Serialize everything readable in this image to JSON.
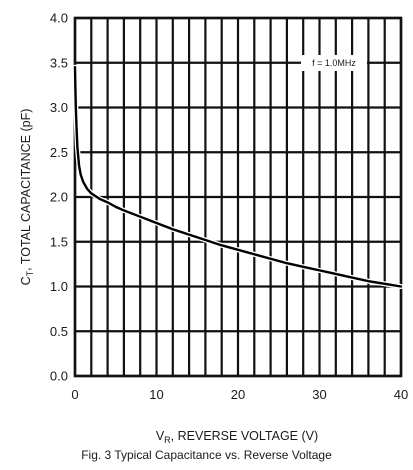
{
  "chart_data": {
    "type": "line",
    "ylabel": "C_T, TOTAL CAPACITANCE (pF)",
    "ylabel_main": "C",
    "ylabel_sub": "T",
    "ylabel_rest": ", TOTAL CAPACITANCE (pF)",
    "xlabel": "V_R, REVERSE VOLTAGE (V)",
    "xlabel_main": "V",
    "xlabel_sub": "R",
    "xlabel_rest": ", REVERSE VOLTAGE (V)",
    "xlim": [
      0,
      40
    ],
    "ylim": [
      0,
      4.0
    ],
    "x_ticks": [
      0,
      10,
      20,
      30,
      40
    ],
    "x_tick_labels": [
      "0",
      "10",
      "20",
      "30",
      "40"
    ],
    "y_ticks": [
      0,
      0.5,
      1.0,
      1.5,
      2.0,
      2.5,
      3.0,
      3.5,
      4.0
    ],
    "y_tick_labels": [
      "0.0",
      "0.5",
      "1.0",
      "1.5",
      "2.0",
      "2.5",
      "3.0",
      "3.5",
      "4.0"
    ],
    "grid": true,
    "grid_x_step": 2,
    "grid_y_step": 0.5,
    "annotation": "f = 1.0MHz",
    "series": [
      {
        "x": [
          0,
          0.05,
          0.1,
          0.2,
          0.3,
          0.5,
          0.7,
          1,
          1.5,
          2,
          3,
          4,
          5,
          6,
          8,
          10,
          12,
          14,
          16,
          18,
          20,
          22,
          24,
          26,
          28,
          30,
          32,
          34,
          36,
          38,
          40
        ],
        "y": [
          3.45,
          3.2,
          3.0,
          2.75,
          2.55,
          2.35,
          2.25,
          2.17,
          2.09,
          2.04,
          1.98,
          1.94,
          1.89,
          1.85,
          1.78,
          1.71,
          1.64,
          1.58,
          1.52,
          1.46,
          1.41,
          1.36,
          1.31,
          1.26,
          1.22,
          1.18,
          1.14,
          1.1,
          1.06,
          1.03,
          1.0
        ]
      }
    ]
  },
  "caption": "Fig. 3  Typical Capacitance vs. Reverse Voltage",
  "colors": {
    "grid": "#111111",
    "curve": "#000000",
    "text": "#1a1a1a"
  }
}
